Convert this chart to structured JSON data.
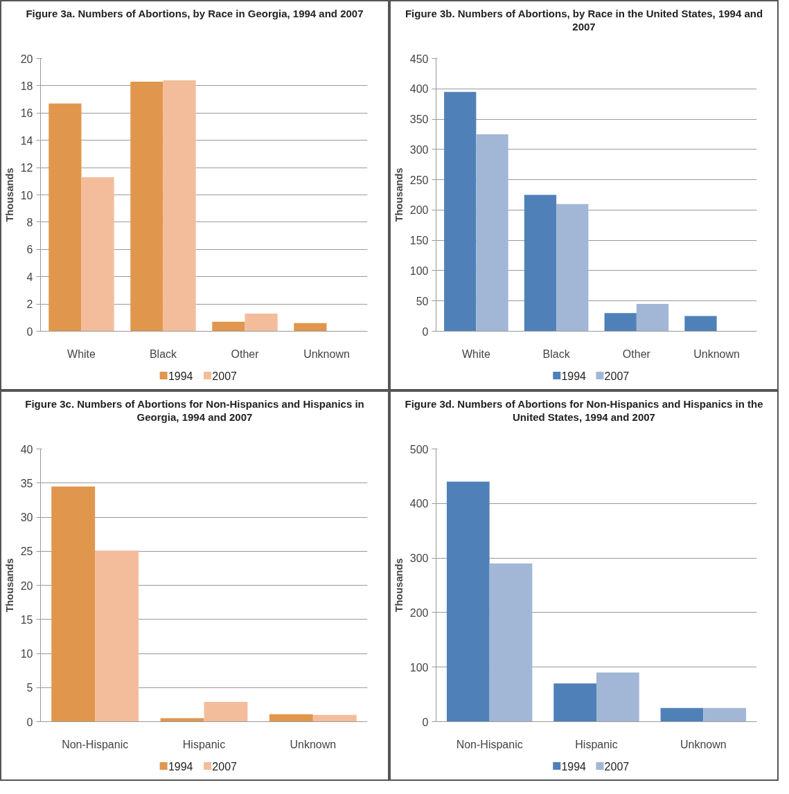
{
  "chart_data": [
    {
      "type": "bar",
      "title": "Figure 3a.  Numbers of Abortions, by Race in Georgia, 1994 and 2007",
      "ylabel": "Thousands",
      "categories": [
        "White",
        "Black",
        "Other",
        "Unknown"
      ],
      "ylim": [
        0,
        20
      ],
      "yticks": [
        0,
        2,
        4,
        6,
        8,
        10,
        12,
        14,
        16,
        18,
        20
      ],
      "grid": "y",
      "legend": "bottom",
      "series": [
        {
          "name": "1994",
          "color": "#e0964c",
          "values": [
            16.7,
            18.3,
            0.7,
            0.6
          ]
        },
        {
          "name": "2007",
          "color": "#f3bd9c",
          "values": [
            11.3,
            18.4,
            1.3,
            null
          ]
        }
      ]
    },
    {
      "type": "bar",
      "title": "Figure 3b.  Numbers of Abortions, by Race in the United States, 1994 and 2007",
      "ylabel": "Thousands",
      "categories": [
        "White",
        "Black",
        "Other",
        "Unknown"
      ],
      "ylim": [
        0,
        450
      ],
      "yticks": [
        0,
        50,
        100,
        150,
        200,
        250,
        300,
        350,
        400,
        450
      ],
      "grid": "y",
      "legend": "bottom",
      "series": [
        {
          "name": "1994",
          "color": "#4f81b8",
          "values": [
            395,
            225,
            30,
            25
          ]
        },
        {
          "name": "2007",
          "color": "#a2b6d6",
          "values": [
            325,
            210,
            45,
            null
          ]
        }
      ]
    },
    {
      "type": "bar",
      "title": "Figure 3c.  Numbers of Abortions for Non-Hispanics and Hispanics in Georgia, 1994 and 2007",
      "ylabel": "Thousands",
      "categories": [
        "Non-Hispanic",
        "Hispanic",
        "Unknown"
      ],
      "ylim": [
        0,
        40
      ],
      "yticks": [
        0,
        5,
        10,
        15,
        20,
        25,
        30,
        35,
        40
      ],
      "grid": "y",
      "legend": "bottom",
      "series": [
        {
          "name": "1994",
          "color": "#e0964c",
          "values": [
            34.5,
            0.5,
            1.1
          ]
        },
        {
          "name": "2007",
          "color": "#f3bd9c",
          "values": [
            25.1,
            2.9,
            1.0
          ]
        }
      ]
    },
    {
      "type": "bar",
      "title": "Figure 3d.  Numbers of Abortions for Non-Hispanics and Hispanics in the United States, 1994 and 2007",
      "ylabel": "Thousands",
      "categories": [
        "Non-Hispanic",
        "Hispanic",
        "Unknown"
      ],
      "ylim": [
        0,
        500
      ],
      "yticks": [
        0,
        100,
        200,
        300,
        400,
        500
      ],
      "grid": "y",
      "legend": "bottom",
      "series": [
        {
          "name": "1994",
          "color": "#4f81b8",
          "values": [
            440,
            70,
            25
          ]
        },
        {
          "name": "2007",
          "color": "#a2b6d6",
          "values": [
            290,
            90,
            25
          ]
        }
      ]
    }
  ]
}
